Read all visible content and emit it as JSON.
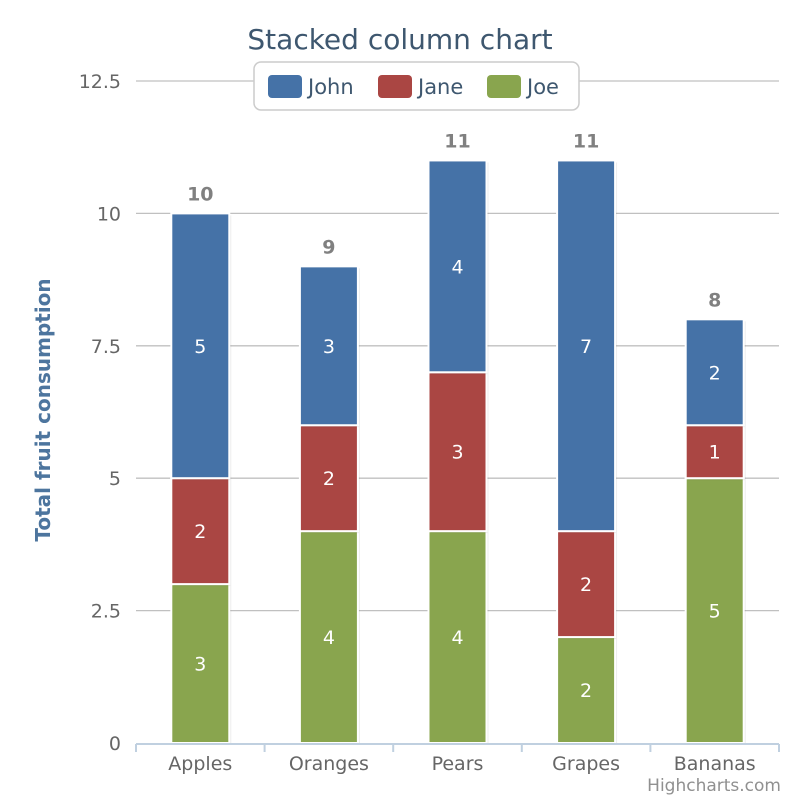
{
  "chart_data": {
    "type": "bar",
    "stacked": true,
    "title": "Stacked column chart",
    "ylabel": "Total fruit consumption",
    "categories": [
      "Apples",
      "Oranges",
      "Pears",
      "Grapes",
      "Bananas"
    ],
    "series": [
      {
        "name": "John",
        "color": "#4572a7",
        "values": [
          5,
          3,
          4,
          7,
          2
        ]
      },
      {
        "name": "Jane",
        "color": "#aa4643",
        "values": [
          2,
          2,
          3,
          2,
          1
        ]
      },
      {
        "name": "Joe",
        "color": "#89a54e",
        "values": [
          3,
          4,
          4,
          2,
          5
        ]
      }
    ],
    "totals": [
      10,
      9,
      11,
      11,
      8
    ],
    "ylim": [
      0,
      12.5
    ],
    "yticks": [
      "0",
      "2.5",
      "5",
      "7.5",
      "10",
      "12.5"
    ],
    "grid": true,
    "legend_position": "top"
  },
  "credits": "Highcharts.com"
}
